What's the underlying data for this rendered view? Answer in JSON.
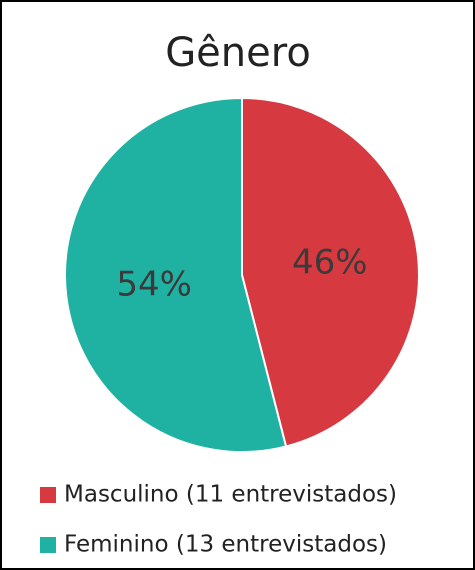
{
  "chart_data": {
    "type": "pie",
    "title": "Gênero",
    "categories": [
      "Masculino (11 entrevistados)",
      "Feminino (13 entrevistados)"
    ],
    "values": [
      46,
      54
    ],
    "value_labels": [
      "46%",
      "54%"
    ],
    "colors": [
      "#d63a40",
      "#1fb2a2"
    ],
    "legend": "bottom"
  }
}
